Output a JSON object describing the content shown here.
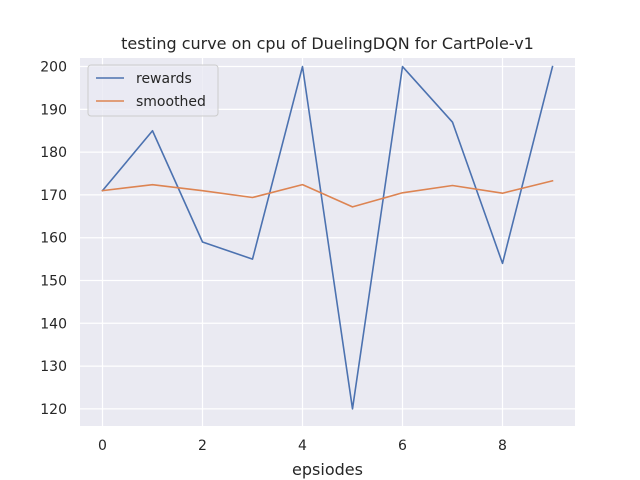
{
  "chart_data": {
    "type": "line",
    "title": "testing curve on cpu of DuelingDQN for CartPole-v1",
    "xlabel": "epsiodes",
    "ylabel": "",
    "x": [
      0,
      1,
      2,
      3,
      4,
      5,
      6,
      7,
      8,
      9
    ],
    "xlim": [
      -0.45,
      9.45
    ],
    "ylim": [
      116,
      202
    ],
    "xticks": [
      0,
      2,
      4,
      6,
      8
    ],
    "yticks": [
      120,
      130,
      140,
      150,
      160,
      170,
      180,
      190,
      200
    ],
    "grid": true,
    "legend_position": "top-left",
    "series": [
      {
        "name": "rewards",
        "color": "#4c72b0",
        "values": [
          171,
          185,
          159,
          155,
          200,
          120,
          200,
          187,
          154,
          200
        ]
      },
      {
        "name": "smoothed",
        "color": "#dd8452",
        "values": [
          171.0,
          172.4,
          171.0,
          169.4,
          172.4,
          167.2,
          170.5,
          172.2,
          170.4,
          173.3
        ]
      }
    ],
    "plot_background": "#eaeaf2",
    "grid_color": "#ffffff"
  }
}
